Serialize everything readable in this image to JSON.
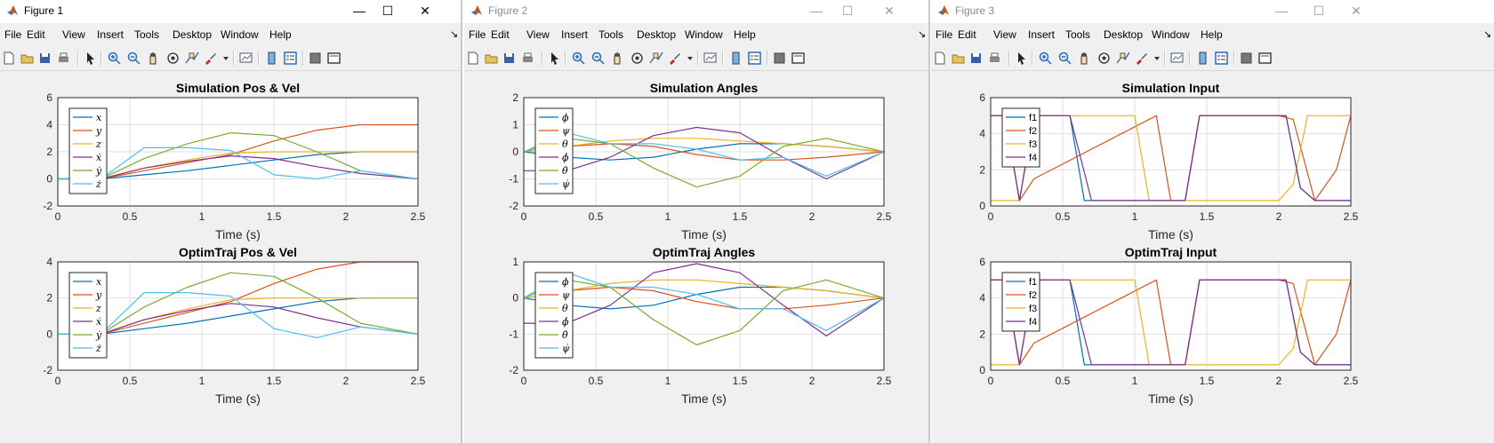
{
  "menus": [
    "File",
    "Edit",
    "View",
    "Insert",
    "Tools",
    "Desktop",
    "Window",
    "Help"
  ],
  "toolbar_icons": [
    "new-file-icon",
    "open-folder-icon",
    "save-icon",
    "print-icon",
    "pointer-icon",
    "zoom-in-icon",
    "zoom-out-icon",
    "pan-icon",
    "rotate-icon",
    "data-cursor-icon",
    "brush-icon",
    "brush-dropdown-icon",
    "link-plot-icon",
    "colorbar-icon",
    "legend-icon",
    "hide-plot-tools-icon",
    "show-plot-tools-icon"
  ],
  "colors": {
    "c1": "#0072BD",
    "c2": "#D95319",
    "c3": "#EDB120",
    "c4": "#7E2F8E",
    "c5": "#77AC30",
    "c6": "#4DBEEE",
    "menubar": "#f0f0f0",
    "grid": "#dfdfdf"
  },
  "windows": [
    {
      "title": "Figure 1",
      "active": true,
      "controls": [
        "—",
        "☐",
        "✕"
      ],
      "menu_arrow": "↘",
      "axes": [
        {
          "title": "Simulation Pos & Vel",
          "xlabel": "Time (s)",
          "yticks": [
            "6",
            "4",
            "2",
            "0",
            "-2"
          ],
          "xticks": [
            "0",
            "0.5",
            "1",
            "1.5",
            "2",
            "2.5"
          ],
          "legend": [
            "x",
            "y",
            "z",
            "ẋ",
            "ẏ",
            "ż"
          ]
        },
        {
          "title": "OptimTraj Pos & Vel",
          "xlabel": "Time (s)",
          "yticks": [
            "4",
            "2",
            "0",
            "-2"
          ],
          "xticks": [
            "0",
            "0.5",
            "1",
            "1.5",
            "2",
            "2.5"
          ],
          "legend": [
            "x",
            "y",
            "z",
            "ẋ",
            "ẏ",
            "ż"
          ]
        }
      ]
    },
    {
      "title": "Figure 2",
      "active": false,
      "controls": [
        "—",
        "☐",
        "✕"
      ],
      "menu_arrow": "↘",
      "axes": [
        {
          "title": "Simulation Angles",
          "xlabel": "Time (s)",
          "yticks": [
            "2",
            "1",
            "0",
            "-1",
            "-2"
          ],
          "xticks": [
            "0",
            "0.5",
            "1",
            "1.5",
            "2",
            "2.5"
          ],
          "legend": [
            "ϕ",
            "ψ",
            "θ",
            "ϕ̇",
            "θ̇",
            "ψ̇"
          ]
        },
        {
          "title": "OptimTraj Angles",
          "xlabel": "Time (s)",
          "yticks": [
            "1",
            "0",
            "-1",
            "-2"
          ],
          "xticks": [
            "0",
            "0.5",
            "1",
            "1.5",
            "2",
            "2.5"
          ],
          "legend": [
            "ϕ",
            "ψ",
            "θ",
            "ϕ̇",
            "θ̇",
            "ψ̇"
          ]
        }
      ]
    },
    {
      "title": "Figure 3",
      "active": false,
      "controls": [
        "—",
        "☐",
        "✕"
      ],
      "menu_arrow": "↘",
      "axes": [
        {
          "title": "Simulation Input",
          "xlabel": "Time (s)",
          "yticks": [
            "6",
            "4",
            "2",
            "0"
          ],
          "xticks": [
            "0",
            "0.5",
            "1",
            "1.5",
            "2",
            "2.5"
          ],
          "legend": [
            "f1",
            "f2",
            "f3",
            "f4"
          ]
        },
        {
          "title": "OptimTraj Input",
          "xlabel": "Time (s)",
          "yticks": [
            "6",
            "4",
            "2",
            "0"
          ],
          "xticks": [
            "0",
            "0.5",
            "1",
            "1.5",
            "2",
            "2.5"
          ],
          "legend": [
            "f1",
            "f2",
            "f3",
            "f4"
          ]
        }
      ]
    }
  ],
  "chart_data": [
    {
      "type": "line",
      "title": "Simulation Pos & Vel",
      "xlabel": "Time (s)",
      "ylabel": "",
      "xlim": [
        0,
        2.5
      ],
      "ylim": [
        -2,
        6
      ],
      "grid": true,
      "legend_position": "top-left",
      "series": [
        {
          "name": "x",
          "x": [
            0,
            0.3,
            0.6,
            0.9,
            1.2,
            1.5,
            1.8,
            2.1,
            2.5
          ],
          "y": [
            0,
            0,
            0.3,
            0.6,
            1.0,
            1.4,
            1.8,
            2.0,
            2.0
          ]
        },
        {
          "name": "y",
          "x": [
            0,
            0.3,
            0.6,
            0.9,
            1.2,
            1.5,
            1.8,
            2.1,
            2.5
          ],
          "y": [
            0,
            0,
            0.6,
            1.2,
            1.8,
            2.8,
            3.6,
            4.0,
            4.0
          ]
        },
        {
          "name": "z",
          "x": [
            0,
            0.3,
            0.6,
            0.9,
            1.2,
            1.5,
            1.8,
            2.1,
            2.5
          ],
          "y": [
            0,
            0,
            0.8,
            1.4,
            1.9,
            2.0,
            2.0,
            2.0,
            2.0
          ]
        },
        {
          "name": "ẋ",
          "x": [
            0,
            0.3,
            0.6,
            0.9,
            1.2,
            1.5,
            1.8,
            2.1,
            2.5
          ],
          "y": [
            0,
            0,
            0.8,
            1.3,
            1.7,
            1.5,
            0.9,
            0.4,
            0
          ]
        },
        {
          "name": "ẏ",
          "x": [
            0,
            0.3,
            0.6,
            0.9,
            1.2,
            1.5,
            1.8,
            2.1,
            2.5
          ],
          "y": [
            0,
            0,
            1.5,
            2.6,
            3.4,
            3.2,
            2.0,
            0.6,
            0
          ]
        },
        {
          "name": "ż",
          "x": [
            0,
            0.3,
            0.6,
            0.9,
            1.2,
            1.5,
            1.8,
            2.1,
            2.5
          ],
          "y": [
            0,
            0,
            2.3,
            2.3,
            2.1,
            0.3,
            0.0,
            0.6,
            0
          ]
        }
      ]
    },
    {
      "type": "line",
      "title": "OptimTraj Pos & Vel",
      "xlabel": "Time (s)",
      "ylabel": "",
      "xlim": [
        0,
        2.5
      ],
      "ylim": [
        -2,
        4
      ],
      "grid": true,
      "legend_position": "top-left",
      "series": [
        {
          "name": "x",
          "x": [
            0,
            0.3,
            0.6,
            0.9,
            1.2,
            1.5,
            1.8,
            2.1,
            2.5
          ],
          "y": [
            0,
            0,
            0.3,
            0.6,
            1.0,
            1.4,
            1.8,
            2.0,
            2.0
          ]
        },
        {
          "name": "y",
          "x": [
            0,
            0.3,
            0.6,
            0.9,
            1.2,
            1.5,
            1.8,
            2.1,
            2.5
          ],
          "y": [
            0,
            0,
            0.6,
            1.2,
            1.8,
            2.8,
            3.6,
            4.0,
            4.0
          ]
        },
        {
          "name": "z",
          "x": [
            0,
            0.3,
            0.6,
            0.9,
            1.2,
            1.5,
            1.8,
            2.1,
            2.5
          ],
          "y": [
            0,
            0,
            0.8,
            1.4,
            1.9,
            2.0,
            2.0,
            2.0,
            2.0
          ]
        },
        {
          "name": "ẋ",
          "x": [
            0,
            0.3,
            0.6,
            0.9,
            1.2,
            1.5,
            1.8,
            2.1,
            2.5
          ],
          "y": [
            0,
            0,
            0.8,
            1.3,
            1.7,
            1.5,
            0.9,
            0.4,
            0
          ]
        },
        {
          "name": "ẏ",
          "x": [
            0,
            0.3,
            0.6,
            0.9,
            1.2,
            1.5,
            1.8,
            2.1,
            2.5
          ],
          "y": [
            0,
            0,
            1.5,
            2.6,
            3.4,
            3.2,
            2.0,
            0.6,
            0
          ]
        },
        {
          "name": "ż",
          "x": [
            0,
            0.3,
            0.6,
            0.9,
            1.2,
            1.5,
            1.8,
            2.1,
            2.5
          ],
          "y": [
            0,
            0,
            2.3,
            2.3,
            2.1,
            0.3,
            -0.2,
            0.4,
            0
          ]
        }
      ]
    },
    {
      "type": "line",
      "title": "Simulation Angles",
      "xlabel": "Time (s)",
      "ylabel": "",
      "xlim": [
        0,
        2.5
      ],
      "ylim": [
        -2,
        2
      ],
      "grid": true,
      "legend_position": "top-left",
      "series": [
        {
          "name": "ϕ",
          "x": [
            0,
            0.3,
            0.6,
            0.9,
            1.2,
            1.5,
            1.8,
            2.1,
            2.5
          ],
          "y": [
            0,
            -0.2,
            -0.3,
            -0.2,
            0.1,
            0.3,
            0.3,
            0.2,
            0
          ]
        },
        {
          "name": "ψ",
          "x": [
            0,
            0.3,
            0.6,
            0.9,
            1.2,
            1.5,
            1.8,
            2.1,
            2.5
          ],
          "y": [
            0,
            0.2,
            0.3,
            0.2,
            -0.1,
            -0.3,
            -0.3,
            -0.2,
            0
          ]
        },
        {
          "name": "θ",
          "x": [
            0,
            0.3,
            0.6,
            0.9,
            1.2,
            1.5,
            1.8,
            2.1,
            2.5
          ],
          "y": [
            0,
            0.2,
            0.4,
            0.5,
            0.5,
            0.4,
            0.3,
            0.2,
            0
          ]
        },
        {
          "name": "ϕ̇",
          "x": [
            0,
            0.3,
            0.6,
            0.9,
            1.2,
            1.5,
            1.8,
            2.1,
            2.5
          ],
          "y": [
            -0.7,
            -0.7,
            -0.2,
            0.6,
            0.9,
            0.7,
            -0.2,
            -1.0,
            0
          ]
        },
        {
          "name": "θ̇",
          "x": [
            0,
            0.3,
            0.6,
            0.9,
            1.2,
            1.5,
            1.8,
            2.1,
            2.5
          ],
          "y": [
            0,
            0.5,
            0.3,
            -0.6,
            -1.3,
            -0.9,
            0.2,
            0.5,
            0
          ]
        },
        {
          "name": "ψ̇",
          "x": [
            0,
            0.3,
            0.6,
            0.9,
            1.2,
            1.5,
            1.8,
            2.1,
            2.5
          ],
          "y": [
            0,
            0.7,
            0.3,
            0.3,
            0.1,
            -0.3,
            -0.2,
            -0.9,
            0
          ]
        }
      ]
    },
    {
      "type": "line",
      "title": "OptimTraj Angles",
      "xlabel": "Time (s)",
      "ylabel": "",
      "xlim": [
        0,
        2.5
      ],
      "ylim": [
        -2,
        1
      ],
      "grid": true,
      "legend_position": "top-left",
      "series": [
        {
          "name": "ϕ",
          "x": [
            0,
            0.3,
            0.6,
            0.9,
            1.2,
            1.5,
            1.8,
            2.1,
            2.5
          ],
          "y": [
            0,
            -0.2,
            -0.3,
            -0.2,
            0.1,
            0.3,
            0.3,
            0.2,
            0
          ]
        },
        {
          "name": "ψ",
          "x": [
            0,
            0.3,
            0.6,
            0.9,
            1.2,
            1.5,
            1.8,
            2.1,
            2.5
          ],
          "y": [
            0,
            0.2,
            0.3,
            0.2,
            -0.1,
            -0.3,
            -0.3,
            -0.2,
            0
          ]
        },
        {
          "name": "θ",
          "x": [
            0,
            0.3,
            0.6,
            0.9,
            1.2,
            1.5,
            1.8,
            2.1,
            2.5
          ],
          "y": [
            0,
            0.2,
            0.4,
            0.5,
            0.5,
            0.4,
            0.3,
            0.2,
            0
          ]
        },
        {
          "name": "ϕ̇",
          "x": [
            0,
            0.3,
            0.6,
            0.9,
            1.2,
            1.5,
            1.8,
            2.1,
            2.5
          ],
          "y": [
            -0.7,
            -0.7,
            -0.2,
            0.7,
            0.95,
            0.7,
            -0.2,
            -1.05,
            0
          ]
        },
        {
          "name": "θ̇",
          "x": [
            0,
            0.3,
            0.6,
            0.9,
            1.2,
            1.5,
            1.8,
            2.1,
            2.5
          ],
          "y": [
            0,
            0.5,
            0.3,
            -0.6,
            -1.3,
            -0.9,
            0.2,
            0.5,
            0
          ]
        },
        {
          "name": "ψ̇",
          "x": [
            0,
            0.3,
            0.6,
            0.9,
            1.2,
            1.5,
            1.8,
            2.1,
            2.5
          ],
          "y": [
            0,
            0.7,
            0.3,
            0.3,
            0.1,
            -0.3,
            -0.3,
            -0.9,
            0
          ]
        }
      ]
    },
    {
      "type": "line",
      "title": "Simulation Input",
      "xlabel": "Time (s)",
      "ylabel": "",
      "xlim": [
        0,
        2.5
      ],
      "ylim": [
        0,
        6
      ],
      "grid": true,
      "legend_position": "top-left",
      "series": [
        {
          "name": "f1",
          "x": [
            0,
            0.1,
            0.2,
            0.3,
            0.55,
            0.65,
            1.35,
            1.45,
            2.05,
            2.15,
            2.25,
            2.5
          ],
          "y": [
            5,
            5,
            0.3,
            5,
            5,
            0.3,
            0.3,
            5,
            5,
            1.0,
            0.3,
            0.3
          ]
        },
        {
          "name": "f2",
          "x": [
            0,
            0.1,
            0.2,
            0.3,
            1.15,
            1.25,
            1.35,
            1.45,
            2.0,
            2.1,
            2.25,
            2.4,
            2.5
          ],
          "y": [
            5,
            5,
            0.3,
            1.5,
            5,
            0.3,
            0.3,
            5,
            5,
            4.8,
            0.3,
            2.0,
            5
          ]
        },
        {
          "name": "f3",
          "x": [
            0,
            0.2,
            0.3,
            1.0,
            1.1,
            2.0,
            2.1,
            2.2,
            2.5
          ],
          "y": [
            0.3,
            0.3,
            5,
            5,
            0.3,
            0.3,
            1.2,
            5,
            5
          ]
        },
        {
          "name": "f4",
          "x": [
            0,
            0.1,
            0.2,
            0.3,
            0.55,
            0.7,
            1.35,
            1.45,
            2.05,
            2.15,
            2.25,
            2.5
          ],
          "y": [
            5,
            5,
            0.3,
            5,
            5,
            0.3,
            0.3,
            5,
            5,
            1.0,
            0.3,
            0.3
          ]
        }
      ]
    },
    {
      "type": "line",
      "title": "OptimTraj Input",
      "xlabel": "Time (s)",
      "ylabel": "",
      "xlim": [
        0,
        2.5
      ],
      "ylim": [
        0,
        6
      ],
      "grid": true,
      "legend_position": "top-left",
      "series": [
        {
          "name": "f1",
          "x": [
            0,
            0.1,
            0.2,
            0.3,
            0.55,
            0.65,
            1.35,
            1.45,
            2.05,
            2.15,
            2.25,
            2.5
          ],
          "y": [
            5,
            5,
            0.3,
            5,
            5,
            0.3,
            0.3,
            5,
            5,
            1.0,
            0.3,
            0.3
          ]
        },
        {
          "name": "f2",
          "x": [
            0,
            0.1,
            0.2,
            0.3,
            1.15,
            1.25,
            1.35,
            1.45,
            2.0,
            2.1,
            2.25,
            2.4,
            2.5
          ],
          "y": [
            5,
            5,
            0.3,
            1.5,
            5,
            0.3,
            0.3,
            5,
            5,
            4.8,
            0.3,
            2.0,
            5
          ]
        },
        {
          "name": "f3",
          "x": [
            0,
            0.2,
            0.3,
            1.0,
            1.1,
            2.0,
            2.1,
            2.2,
            2.5
          ],
          "y": [
            0.3,
            0.3,
            5,
            5,
            0.3,
            0.3,
            1.2,
            5,
            5
          ]
        },
        {
          "name": "f4",
          "x": [
            0,
            0.1,
            0.2,
            0.3,
            0.55,
            0.7,
            1.35,
            1.45,
            2.05,
            2.15,
            2.25,
            2.5
          ],
          "y": [
            5,
            5,
            0.3,
            5,
            5,
            0.3,
            0.3,
            5,
            5,
            1.0,
            0.3,
            0.3
          ]
        }
      ]
    }
  ]
}
